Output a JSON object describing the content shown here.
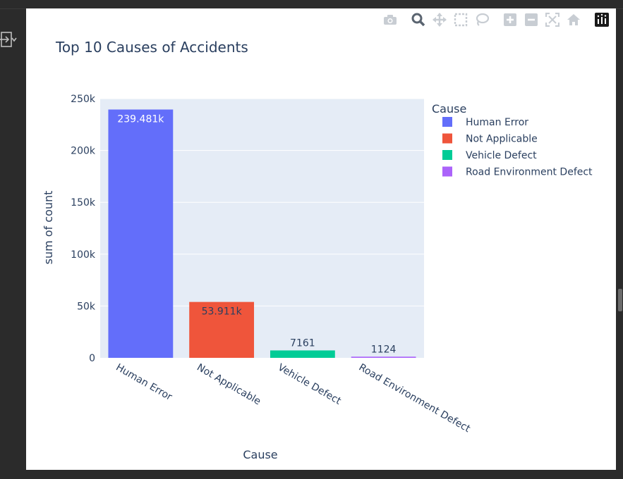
{
  "toolbar_icons": [
    "camera-icon",
    "zoom-icon",
    "pan-icon",
    "box-select-icon",
    "lasso-icon",
    "zoom-in-icon",
    "zoom-out-icon",
    "autoscale-icon",
    "home-icon",
    "plotly-logo-icon"
  ],
  "colors": {
    "plot_bg": "#e5ecf6",
    "text": "#2a3f5f",
    "series": [
      "#636efa",
      "#ef553b",
      "#00cc96",
      "#ab63fa"
    ]
  },
  "chart_data": {
    "type": "bar",
    "title": "Top 10 Causes of Accidents",
    "xlabel": "Cause",
    "ylabel": "sum of count",
    "categories": [
      "Human Error",
      "Not Applicable",
      "Vehicle Defect",
      "Road Environment Defect"
    ],
    "values": [
      239481,
      53911,
      7161,
      1124
    ],
    "data_labels": [
      "239.481k",
      "53.911k",
      "7161",
      "1124"
    ],
    "ylim": [
      0,
      250000
    ],
    "yticks": [
      0,
      50000,
      100000,
      150000,
      200000,
      250000
    ],
    "ytick_labels": [
      "0",
      "50k",
      "100k",
      "150k",
      "200k",
      "250k"
    ],
    "grid": true,
    "legend": {
      "title": "Cause",
      "placement": "right",
      "entries": [
        "Human Error",
        "Not Applicable",
        "Vehicle Defect",
        "Road Environment Defect"
      ]
    }
  }
}
